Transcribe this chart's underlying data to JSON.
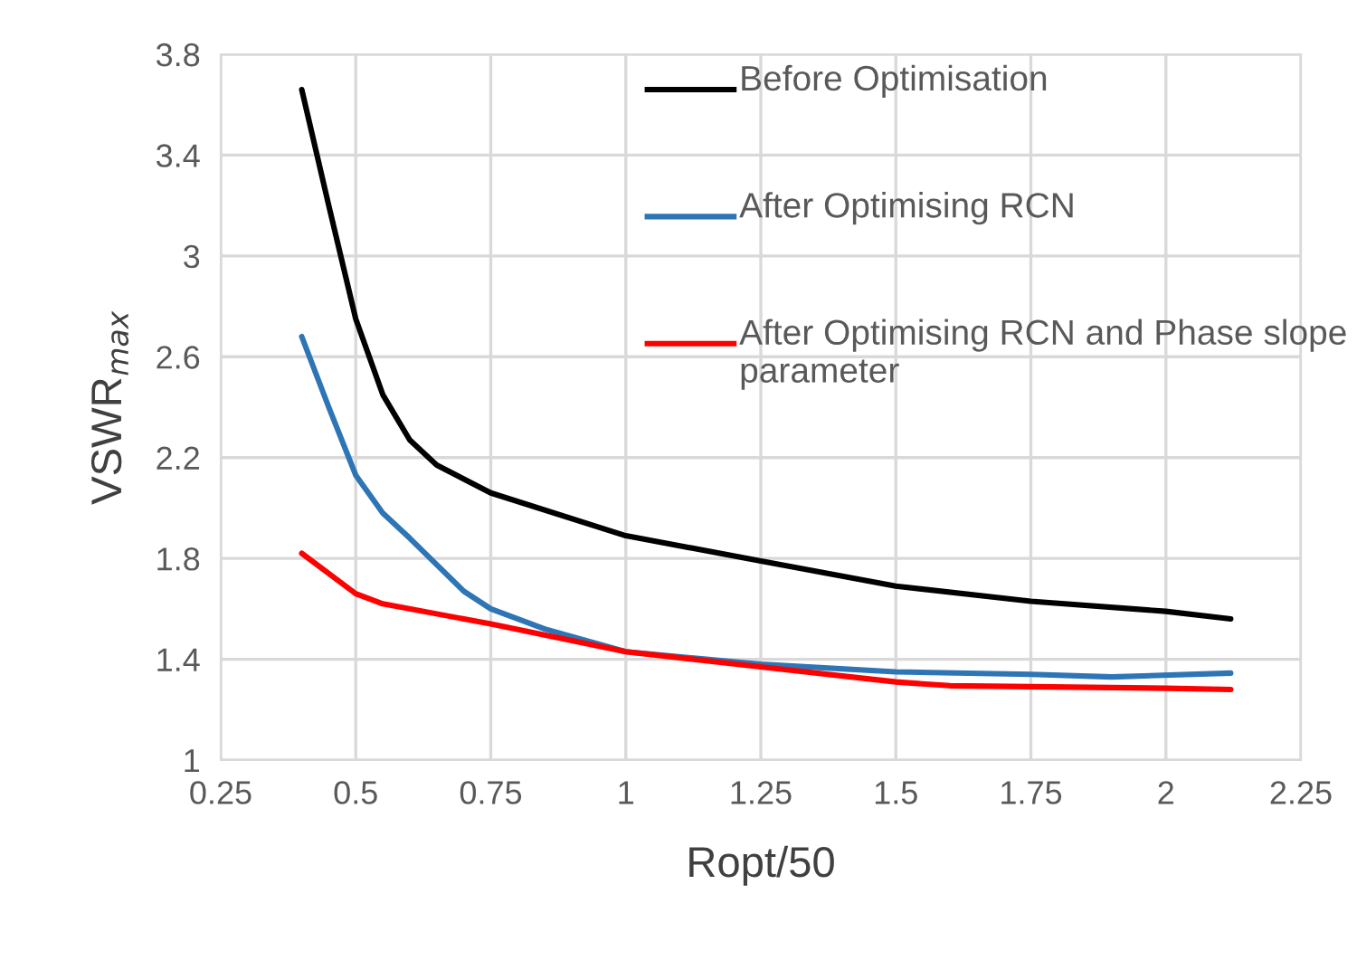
{
  "chart_data": {
    "type": "line",
    "xlabel": "Ropt/50",
    "ylabel": "VSWR$_{max}$",
    "xlim": [
      0.25,
      2.25
    ],
    "xticks": [
      0.25,
      0.5,
      0.75,
      1,
      1.25,
      1.5,
      1.75,
      2,
      2.25
    ],
    "ylim": [
      1,
      3.8
    ],
    "yticks": [
      1,
      1.4,
      1.8,
      2.2,
      2.6,
      3,
      3.4,
      3.8
    ],
    "grid": true,
    "legend": "top right",
    "line_style": "solid",
    "marker": "none",
    "series": [
      {
        "name": "Before Optimisation",
        "color": "#000000",
        "x": [
          0.4,
          0.45,
          0.5,
          0.55,
          0.6,
          0.65,
          0.75,
          1.0,
          1.25,
          1.5,
          1.75,
          2.0,
          2.12
        ],
        "values": [
          3.66,
          3.2,
          2.75,
          2.45,
          2.27,
          2.17,
          2.06,
          1.89,
          1.79,
          1.69,
          1.63,
          1.59,
          1.56
        ]
      },
      {
        "name": "After Optimising RCN",
        "color": "#2e75b6",
        "x": [
          0.4,
          0.45,
          0.5,
          0.55,
          0.6,
          0.7,
          0.75,
          0.85,
          1.0,
          1.25,
          1.5,
          1.75,
          1.9,
          2.12
        ],
        "values": [
          2.68,
          2.4,
          2.13,
          1.98,
          1.88,
          1.67,
          1.6,
          1.52,
          1.43,
          1.38,
          1.35,
          1.34,
          1.33,
          1.345
        ]
      },
      {
        "name": "After Optimising RCN and Phase slope parameter",
        "color": "#ff0000",
        "x": [
          0.4,
          0.5,
          0.55,
          0.75,
          1.0,
          1.25,
          1.5,
          1.6,
          2.0,
          2.12
        ],
        "values": [
          1.82,
          1.66,
          1.62,
          1.54,
          1.43,
          1.37,
          1.31,
          1.295,
          1.285,
          1.28
        ]
      }
    ]
  }
}
